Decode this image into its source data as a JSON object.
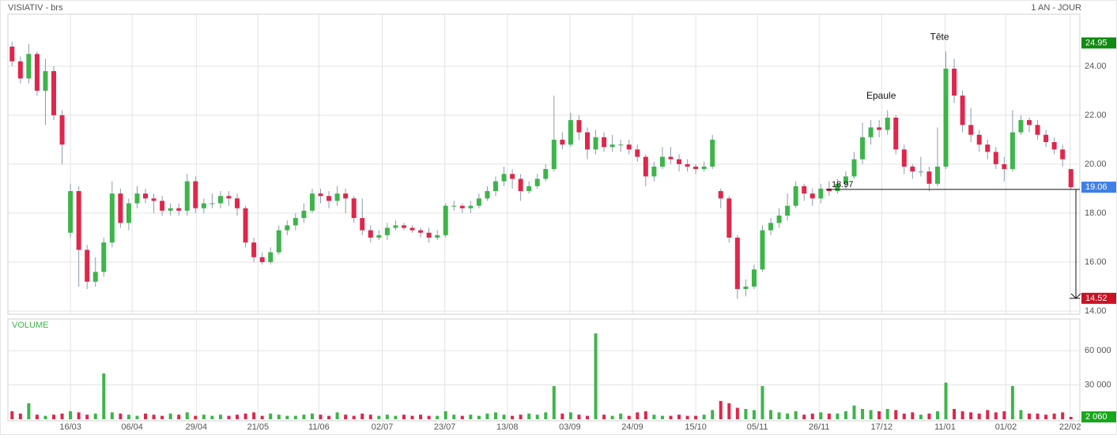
{
  "chart_data": {
    "type": "candlestick",
    "title": "VISIATIV - brs",
    "subtitle": "1 AN - JOUR",
    "volume_title": "VOLUME",
    "up_color": "#3db54a",
    "down_color": "#e0264c",
    "xlim": [
      -0.5,
      127.5
    ],
    "xticks": [
      {
        "value": 7,
        "label": "16/03"
      },
      {
        "value": 14.4,
        "label": "06/04"
      },
      {
        "value": 22.1,
        "label": "29/04"
      },
      {
        "value": 29.5,
        "label": "21/05"
      },
      {
        "value": 36.8,
        "label": "11/06"
      },
      {
        "value": 44.4,
        "label": "02/07"
      },
      {
        "value": 51.9,
        "label": "23/07"
      },
      {
        "value": 59.4,
        "label": "13/08"
      },
      {
        "value": 66.9,
        "label": "03/09"
      },
      {
        "value": 74.4,
        "label": "24/09"
      },
      {
        "value": 82,
        "label": "15/10"
      },
      {
        "value": 89.4,
        "label": "05/11"
      },
      {
        "value": 96.8,
        "label": "26/11"
      },
      {
        "value": 104.3,
        "label": "17/12"
      },
      {
        "value": 111.9,
        "label": "11/01"
      },
      {
        "value": 119.2,
        "label": "01/02"
      },
      {
        "value": 126.9,
        "label": "22/02"
      }
    ],
    "ylim": [
      13.87,
      26.06
    ],
    "yticks": [
      {
        "value": 14,
        "label": "14.00"
      },
      {
        "value": 16,
        "label": "16.00"
      },
      {
        "value": 18,
        "label": "18.00"
      },
      {
        "value": 20,
        "label": "20.00"
      },
      {
        "value": 22,
        "label": "22.00"
      },
      {
        "value": 24,
        "label": "24.00"
      }
    ],
    "open": [
      24.8,
      24.2,
      23.5,
      24.5,
      23.0,
      23.8,
      22.0,
      17.2,
      18.9,
      16.5,
      15.2,
      15.6,
      16.8,
      18.8,
      17.6,
      18.4,
      18.8,
      18.6,
      18.5,
      18.1,
      18.2,
      18.1,
      19.3,
      18.2,
      18.4,
      18.4,
      18.7,
      18.6,
      18.2,
      16.8,
      16.2,
      16.0,
      16.4,
      17.3,
      17.5,
      17.8,
      18.1,
      18.8,
      18.7,
      18.5,
      18.8,
      18.6,
      17.8,
      17.3,
      17.0,
      17.1,
      17.4,
      17.5,
      17.4,
      17.3,
      17.2,
      17.0,
      17.1,
      18.3,
      18.3,
      18.2,
      18.3,
      18.6,
      18.9,
      19.3,
      19.6,
      19.4,
      18.9,
      19.1,
      19.4,
      19.8,
      21.0,
      20.8,
      21.8,
      21.3,
      20.6,
      21.1,
      20.7,
      20.8,
      20.8,
      20.6,
      20.3,
      19.5,
      19.9,
      20.3,
      20.2,
      20.0,
      19.9,
      19.8,
      19.9,
      18.9,
      18.6,
      17.0,
      14.9,
      15.0,
      15.7,
      17.3,
      17.6,
      17.9,
      18.3,
      19.1,
      18.8,
      18.6,
      19.0,
      18.9,
      19.2,
      19.5,
      20.2,
      21.1,
      21.5,
      21.4,
      21.9,
      20.6,
      19.9,
      19.7,
      19.7,
      19.2,
      19.9,
      23.9,
      22.8,
      21.6,
      21.2,
      20.8,
      20.5,
      20.0,
      19.8,
      21.3,
      21.8,
      21.6,
      21.2,
      20.9,
      20.6,
      19.8
    ],
    "high": [
      25.0,
      24.4,
      24.9,
      24.6,
      24.3,
      24.0,
      22.2,
      19.2,
      19.1,
      16.7,
      16.2,
      17.0,
      19.3,
      19.0,
      18.6,
      19.1,
      19.0,
      18.8,
      18.7,
      18.4,
      18.4,
      19.6,
      19.5,
      18.6,
      18.8,
      18.9,
      18.9,
      18.8,
      18.3,
      17.0,
      16.4,
      16.6,
      17.5,
      17.7,
      18.0,
      18.4,
      19.0,
      19.0,
      18.9,
      19.1,
      19.0,
      18.7,
      18.6,
      17.5,
      17.3,
      17.6,
      17.7,
      17.6,
      17.5,
      17.4,
      17.4,
      17.3,
      18.4,
      18.5,
      18.4,
      18.5,
      18.8,
      19.1,
      19.5,
      19.9,
      19.8,
      19.6,
      19.3,
      19.6,
      20.0,
      22.8,
      21.3,
      22.1,
      22.0,
      21.5,
      21.4,
      21.3,
      21.2,
      21.0,
      21.0,
      20.8,
      20.4,
      20.1,
      20.7,
      20.7,
      20.4,
      20.2,
      20.0,
      20.1,
      21.2,
      19.0,
      18.7,
      17.1,
      15.3,
      15.9,
      17.5,
      17.8,
      18.2,
      18.8,
      19.3,
      19.2,
      19.0,
      19.2,
      19.3,
      19.4,
      19.7,
      20.5,
      21.7,
      21.8,
      21.8,
      22.2,
      22.0,
      20.8,
      20.0,
      20.3,
      19.9,
      21.5,
      24.6,
      24.3,
      23.0,
      22.3,
      21.4,
      21.0,
      20.7,
      20.3,
      22.2,
      22.0,
      21.9,
      21.8,
      21.4,
      21.1,
      20.8,
      19.8
    ],
    "low": [
      24.0,
      23.3,
      23.3,
      22.8,
      21.6,
      21.8,
      20.0,
      17.0,
      15.0,
      14.9,
      15.0,
      15.4,
      16.6,
      17.4,
      17.3,
      18.2,
      18.4,
      18.0,
      17.9,
      17.9,
      17.9,
      17.9,
      18.0,
      18.0,
      18.2,
      18.2,
      18.3,
      17.9,
      16.6,
      16.0,
      15.9,
      15.9,
      16.3,
      17.1,
      17.3,
      17.6,
      18.0,
      18.4,
      18.2,
      18.3,
      18.0,
      17.6,
      17.1,
      16.8,
      16.9,
      16.9,
      17.3,
      17.3,
      17.2,
      17.0,
      16.8,
      16.9,
      17.0,
      18.1,
      18.0,
      18.0,
      18.2,
      18.5,
      18.7,
      19.1,
      19.0,
      18.5,
      18.8,
      19.0,
      19.3,
      19.7,
      20.6,
      20.7,
      21.0,
      20.2,
      20.4,
      20.5,
      20.5,
      20.5,
      20.4,
      20.1,
      19.1,
      19.3,
      19.8,
      20.0,
      19.7,
      19.7,
      19.6,
      19.7,
      19.8,
      18.2,
      16.8,
      14.5,
      14.6,
      14.9,
      15.6,
      17.1,
      17.4,
      17.7,
      18.2,
      18.5,
      18.3,
      18.4,
      18.7,
      18.8,
      19.0,
      19.4,
      20.0,
      20.8,
      21.1,
      21.2,
      20.4,
      19.6,
      19.4,
      19.5,
      18.9,
      19.1,
      19.8,
      22.5,
      21.3,
      20.9,
      20.5,
      20.2,
      19.8,
      19.3,
      19.7,
      21.2,
      21.3,
      21.0,
      20.7,
      20.4,
      19.9,
      18.97
    ],
    "close": [
      24.2,
      23.5,
      24.5,
      23.0,
      23.8,
      22.0,
      20.8,
      18.9,
      16.5,
      15.2,
      15.6,
      16.8,
      18.8,
      17.6,
      18.4,
      18.8,
      18.6,
      18.5,
      18.1,
      18.2,
      18.1,
      19.3,
      18.2,
      18.4,
      18.4,
      18.7,
      18.6,
      18.2,
      16.8,
      16.2,
      16.0,
      16.4,
      17.3,
      17.5,
      17.8,
      18.1,
      18.8,
      18.7,
      18.5,
      18.8,
      18.6,
      17.8,
      17.3,
      17.0,
      17.1,
      17.4,
      17.5,
      17.4,
      17.3,
      17.2,
      17.0,
      17.1,
      18.3,
      18.3,
      18.2,
      18.3,
      18.6,
      18.9,
      19.3,
      19.6,
      19.4,
      18.9,
      19.1,
      19.4,
      19.8,
      21.0,
      20.8,
      21.8,
      21.3,
      20.6,
      21.1,
      20.7,
      20.8,
      20.8,
      20.6,
      20.3,
      19.5,
      19.9,
      20.3,
      20.2,
      20.0,
      19.9,
      19.8,
      19.9,
      21.0,
      18.6,
      17.0,
      14.9,
      15.0,
      15.7,
      17.3,
      17.6,
      17.9,
      18.3,
      19.1,
      18.8,
      18.6,
      19.0,
      18.9,
      19.2,
      19.5,
      20.2,
      21.1,
      21.5,
      21.4,
      21.9,
      20.6,
      19.9,
      19.7,
      19.7,
      19.2,
      19.9,
      23.9,
      22.8,
      21.6,
      21.2,
      20.8,
      20.5,
      20.0,
      19.8,
      21.3,
      21.8,
      21.6,
      21.2,
      20.9,
      20.6,
      20.2,
      19.06
    ],
    "volume": [
      7000,
      5000,
      14000,
      4000,
      3000,
      4000,
      5000,
      7000,
      6000,
      4000,
      5000,
      40000,
      6000,
      5000,
      4000,
      3000,
      5000,
      4000,
      3000,
      5000,
      4000,
      6000,
      3000,
      4000,
      3000,
      4000,
      3000,
      4000,
      5000,
      6000,
      3000,
      5000,
      4000,
      3000,
      3000,
      4000,
      5000,
      4000,
      3000,
      6000,
      4000,
      3000,
      5000,
      4000,
      3000,
      4000,
      3000,
      4000,
      3000,
      4000,
      3000,
      3000,
      7000,
      4000,
      3000,
      4000,
      3000,
      5000,
      6000,
      4000,
      3000,
      4000,
      5000,
      4000,
      6000,
      29000,
      5000,
      6000,
      4000,
      3000,
      75000,
      4000,
      3000,
      5000,
      3000,
      6000,
      7000,
      4000,
      3000,
      3000,
      4000,
      3000,
      3000,
      4000,
      8000,
      16000,
      14000,
      10000,
      9000,
      8000,
      29000,
      8000,
      6000,
      5000,
      7000,
      4000,
      5000,
      6000,
      5000,
      5000,
      7000,
      12000,
      9000,
      8000,
      7000,
      9000,
      8000,
      5000,
      6000,
      4000,
      5000,
      7000,
      32000,
      9000,
      7000,
      6000,
      5000,
      8000,
      6000,
      7000,
      29000,
      8000,
      5000,
      5000,
      4000,
      5000,
      6000,
      2060
    ],
    "volume_lim": [
      0,
      87600
    ],
    "volume_ticks": [
      {
        "value": 30000,
        "label": "30 000"
      },
      {
        "value": 60000,
        "label": "60 000"
      }
    ],
    "volume_last": {
      "value": 2060,
      "label": "2 060"
    },
    "annotations": [
      "Epaule",
      "Tête"
    ],
    "levels": {
      "high": 24.95,
      "last": 19.06,
      "neckline": 18.97,
      "target": 14.52
    },
    "level_colors": {
      "high": "#0f8a12",
      "last": "#3f7fe8",
      "target": "#cc1122"
    }
  }
}
